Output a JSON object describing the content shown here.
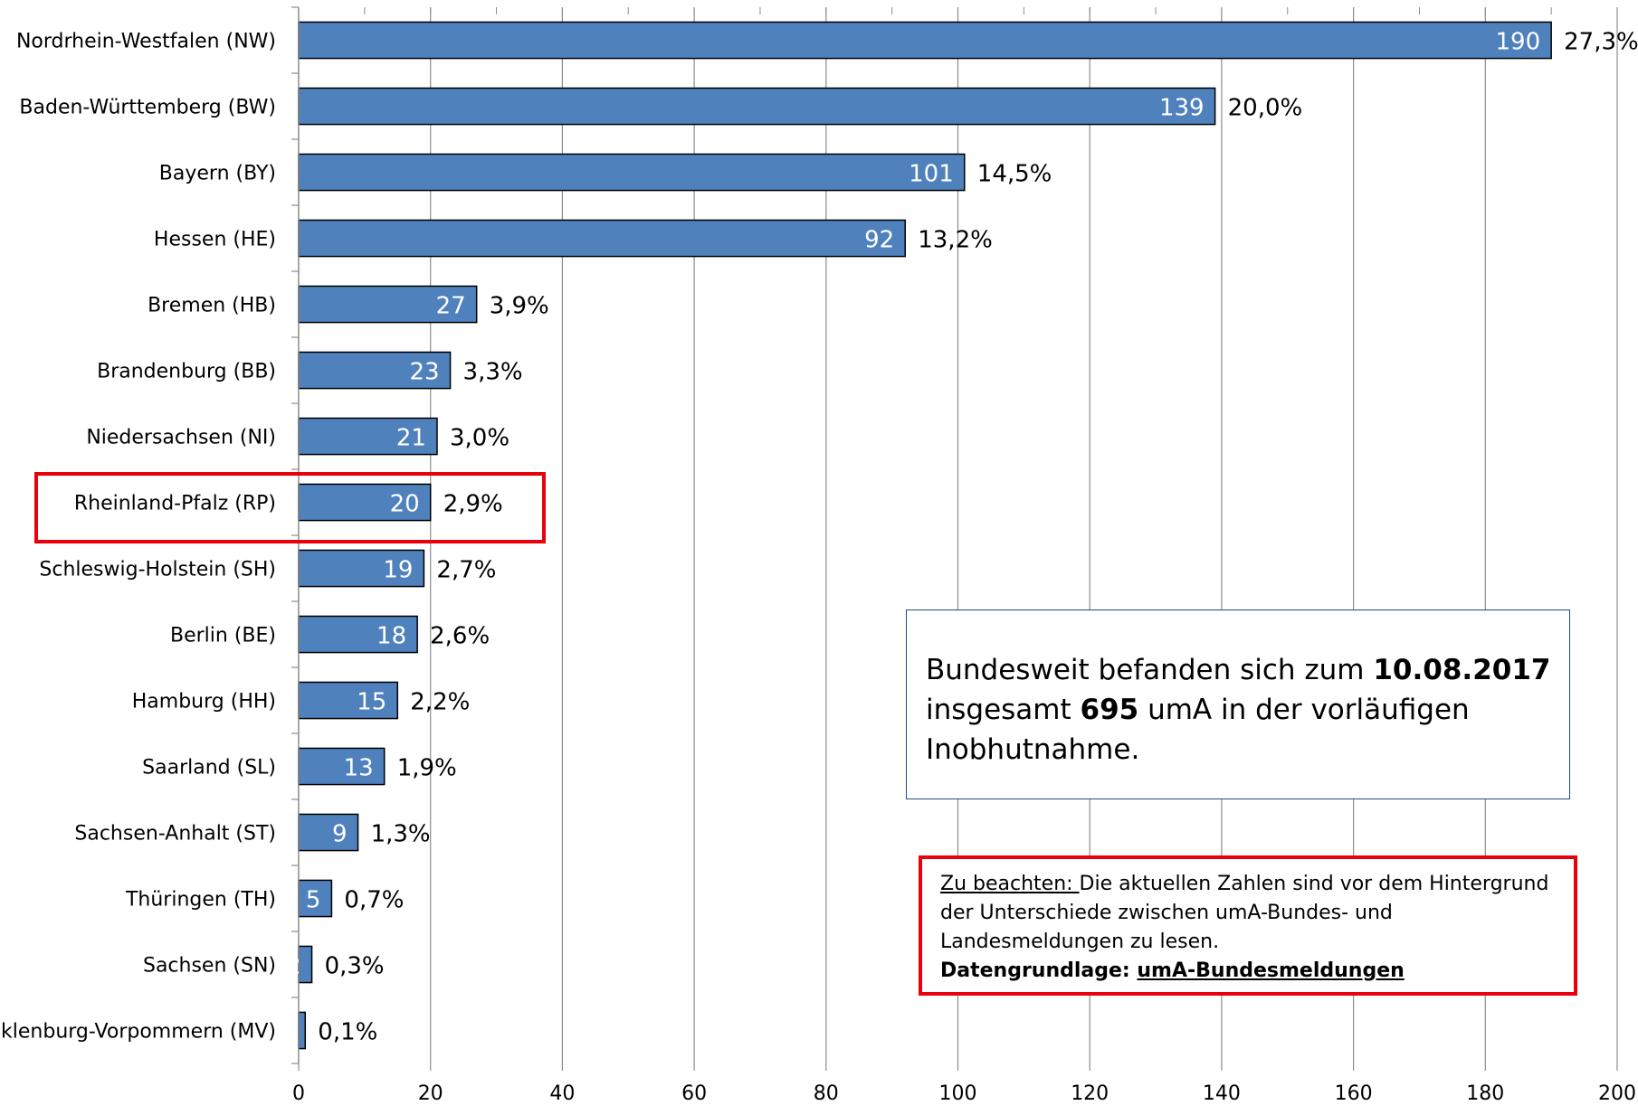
{
  "chart_data": {
    "type": "bar",
    "orientation": "horizontal",
    "categories": [
      "Nordrhein-Westfalen (NW)",
      "Baden-Württemberg (BW)",
      "Bayern (BY)",
      "Hessen (HE)",
      "Bremen (HB)",
      "Brandenburg (BB)",
      "Niedersachsen (NI)",
      "Rheinland-Pfalz (RP)",
      "Schleswig-Holstein (SH)",
      "Berlin (BE)",
      "Hamburg (HH)",
      "Saarland (SL)",
      "Sachsen-Anhalt (ST)",
      "Thüringen (TH)",
      "Sachsen (SN)",
      "Mecklenburg-Vorpommern (MV)"
    ],
    "values": [
      190,
      139,
      101,
      92,
      27,
      23,
      21,
      20,
      19,
      18,
      15,
      13,
      9,
      5,
      2,
      1
    ],
    "percent_labels": [
      "27,3%",
      "20,0%",
      "14,5%",
      "13,2%",
      "3,9%",
      "3,3%",
      "3,0%",
      "2,9%",
      "2,7%",
      "2,6%",
      "2,2%",
      "1,9%",
      "1,3%",
      "0,7%",
      "0,3%",
      "0,1%"
    ],
    "highlighted_category": "Rheinland-Pfalz (RP)",
    "xlim": [
      0,
      200
    ],
    "xticks": [
      0,
      20,
      40,
      60,
      80,
      100,
      120,
      140,
      160,
      180,
      200
    ],
    "grid": "vertical",
    "bar_color": "#4f81bd",
    "bar_edge_color": "#000000",
    "highlight_color": "#e8000b"
  },
  "info_box": {
    "part1": "Bundesweit befanden sich zum ",
    "date": "10.08.2017",
    "part2": " insgesamt ",
    "total": "695",
    "part3": " umA in der vorläufigen Inobhutnahme."
  },
  "note_box": {
    "heading": "Zu beachten: ",
    "text": "Die aktuellen Zahlen sind vor dem Hintergrund der Unterschiede zwischen umA-Bundes- und Landesmeldungen zu lesen.",
    "basis_label": "Datengrundlage: ",
    "basis_value": "umA-Bundesmeldungen"
  }
}
